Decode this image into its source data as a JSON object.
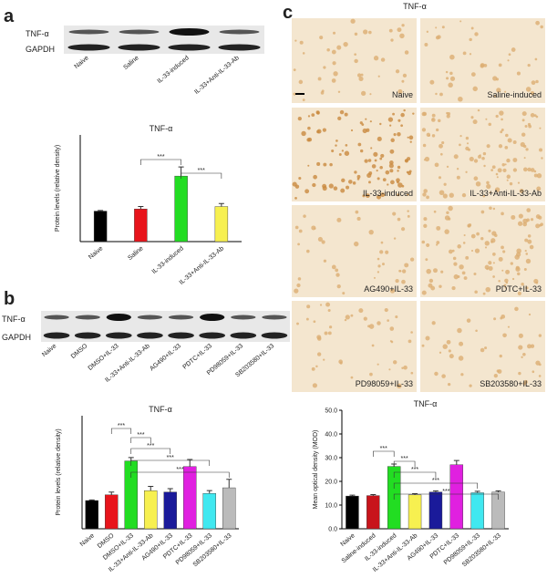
{
  "panel_labels": [
    "a",
    "b",
    "c"
  ],
  "blot_a": {
    "rows": [
      "TNF-α",
      "GAPDH"
    ],
    "lanes": [
      "Naive",
      "Saline",
      "IL-33-induced",
      "IL-33+Anti-IL-33-Ab"
    ]
  },
  "blot_b": {
    "rows": [
      "TNF-α",
      "GAPDH"
    ],
    "lanes": [
      "Naive",
      "DMSO",
      "DMSO+IL-33",
      "IL-33+Anti-IL-33-Ab",
      "AG490+IL-33",
      "PDTC+IL-33",
      "PD98059+IL-33",
      "SB203580+IL-33"
    ]
  },
  "micrographs": {
    "title": "TNF-α",
    "labels": [
      "Naive",
      "Saline-induced",
      "IL-33-induced",
      "IL-33+Anti-IL-33-Ab",
      "AG490+IL-33",
      "PDTC+IL-33",
      "PD98059+IL-33",
      "SB203580+IL-33"
    ]
  },
  "chart_data": [
    {
      "type": "bar",
      "title": "TNF-α",
      "y_label": "Protein levels (relative density)",
      "categories": [
        "Naive",
        "Saline",
        "IL-33-induced",
        "IL-33+Anti-IL-33-Ab"
      ],
      "values": [
        1.0,
        1.07,
        2.15,
        1.15
      ],
      "errors": [
        0.02,
        0.08,
        0.3,
        0.1
      ],
      "colors": [
        "#000000",
        "#e8141b",
        "#22dd22",
        "#f7f050"
      ],
      "ylim": [
        0,
        3.5
      ],
      "annotations": [
        "***",
        "***"
      ]
    },
    {
      "type": "bar",
      "title": "TNF-α",
      "y_label": "Protein levels (relative density)",
      "categories": [
        "Naive",
        "DMSO",
        "DMSO+IL-33",
        "IL-33+Anti-IL-33-Ab",
        "AG490+IL-33",
        "PDTC+IL-33",
        "PD98059+IL-33",
        "SB203580+IL-33"
      ],
      "values": [
        1.0,
        1.2,
        2.4,
        1.35,
        1.3,
        2.2,
        1.25,
        1.45
      ],
      "errors": [
        0.02,
        0.1,
        0.12,
        0.15,
        0.12,
        0.25,
        0.1,
        0.3
      ],
      "colors": [
        "#000000",
        "#e8141b",
        "#22dd22",
        "#f7f050",
        "#1a1a9a",
        "#e020e0",
        "#40e8f0",
        "#bbbbbb"
      ],
      "ylim": [
        0,
        4
      ],
      "annotations": [
        "***",
        "***",
        "***",
        "***",
        "***"
      ]
    },
    {
      "type": "bar",
      "title": "TNF-α",
      "y_label": "Mean optical density (MOD)",
      "categories": [
        "Naive",
        "Saline-induced",
        "IL-33-induced",
        "IL-33+Anti-IL-33-Ab",
        "AG490+IL-33",
        "PDTC+IL-33",
        "PD98059+IL-33",
        "SB203580+IL-33"
      ],
      "values": [
        13.8,
        14,
        26.3,
        14.3,
        15.5,
        27,
        15.2,
        15.5
      ],
      "errors": [
        0.4,
        0.4,
        1,
        0.5,
        0.5,
        1.8,
        0.6,
        0.5
      ],
      "colors": [
        "#000000",
        "#c8141b",
        "#22dd22",
        "#f7f050",
        "#1a1a9a",
        "#e020e0",
        "#40e8f0",
        "#bbbbbb"
      ],
      "ylim": [
        0,
        50
      ],
      "yticks": [
        {
          "value": 0,
          "label": "0.0"
        },
        {
          "value": 10,
          "label": "10.0"
        },
        {
          "value": 20,
          "label": "20.0"
        },
        {
          "value": 30,
          "label": "30.0"
        },
        {
          "value": 40,
          "label": "40.0"
        },
        {
          "value": 50,
          "label": "50.0"
        }
      ],
      "annotations": [
        "***",
        "***",
        "***",
        "***",
        "***"
      ]
    }
  ]
}
